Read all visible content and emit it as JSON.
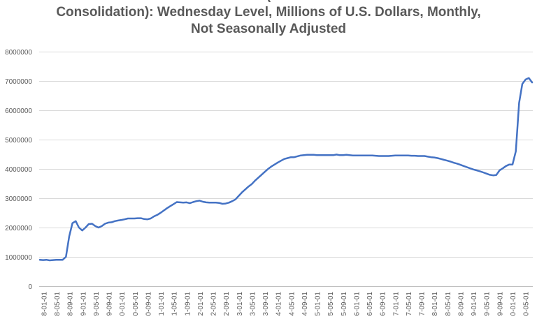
{
  "title_lines": [
    "(",
    "Consolidation): Wednesday Level, Millions of U.S. Dollars, Monthly,",
    "Not Seasonally Adjusted"
  ],
  "chart_data": {
    "type": "line",
    "title": "Consolidation): Wednesday Level, Millions of U.S. Dollars, Monthly, Not Seasonally Adjusted",
    "xlabel": "",
    "ylabel": "",
    "ylim": [
      0,
      8000000
    ],
    "yticks": [
      0,
      1000000,
      2000000,
      3000000,
      4000000,
      5000000,
      6000000,
      7000000,
      8000000
    ],
    "ytick_labels": [
      "0",
      "1000000",
      "2000000",
      "3000000",
      "4000000",
      "5000000",
      "6000000",
      "7000000",
      "8000000"
    ],
    "grid": true,
    "legend": "none",
    "line_color": "#4472c4",
    "x_tick_labels": [
      "8-01-01",
      "8-05-01",
      "8-09-01",
      "9-01-01",
      "9-05-01",
      "9-09-01",
      "0-01-01",
      "0-05-01",
      "0-09-01",
      "1-01-01",
      "1-05-01",
      "1-09-01",
      "2-01-01",
      "2-05-01",
      "2-09-01",
      "3-01-01",
      "3-05-01",
      "3-09-01",
      "4-01-01",
      "4-05-01",
      "4-09-01",
      "5-01-01",
      "5-05-01",
      "5-09-01",
      "6-01-01",
      "6-05-01",
      "6-09-01",
      "7-01-01",
      "7-05-01",
      "7-09-01",
      "8-01-01",
      "8-05-01",
      "8-09-01",
      "9-01-01",
      "9-05-01",
      "9-09-01",
      "0-01-01",
      "0-05-01"
    ],
    "series": [
      {
        "name": "Wednesday Level",
        "values": [
          900000,
          890000,
          900000,
          880000,
          890000,
          900000,
          900000,
          900000,
          1000000,
          1700000,
          2150000,
          2220000,
          2000000,
          1900000,
          2000000,
          2120000,
          2130000,
          2050000,
          2000000,
          2050000,
          2130000,
          2170000,
          2180000,
          2220000,
          2240000,
          2260000,
          2280000,
          2310000,
          2310000,
          2310000,
          2320000,
          2320000,
          2290000,
          2280000,
          2310000,
          2380000,
          2430000,
          2500000,
          2580000,
          2660000,
          2730000,
          2800000,
          2870000,
          2860000,
          2850000,
          2860000,
          2830000,
          2870000,
          2900000,
          2920000,
          2880000,
          2860000,
          2850000,
          2850000,
          2850000,
          2840000,
          2810000,
          2820000,
          2850000,
          2900000,
          2960000,
          3080000,
          3200000,
          3300000,
          3400000,
          3480000,
          3600000,
          3700000,
          3800000,
          3900000,
          4000000,
          4080000,
          4150000,
          4220000,
          4280000,
          4340000,
          4370000,
          4400000,
          4400000,
          4430000,
          4460000,
          4470000,
          4480000,
          4480000,
          4480000,
          4470000,
          4470000,
          4470000,
          4470000,
          4470000,
          4470000,
          4490000,
          4470000,
          4470000,
          4480000,
          4470000,
          4460000,
          4460000,
          4460000,
          4460000,
          4460000,
          4460000,
          4460000,
          4450000,
          4440000,
          4440000,
          4440000,
          4440000,
          4450000,
          4460000,
          4460000,
          4460000,
          4460000,
          4460000,
          4450000,
          4450000,
          4440000,
          4440000,
          4440000,
          4420000,
          4400000,
          4390000,
          4370000,
          4340000,
          4310000,
          4280000,
          4250000,
          4210000,
          4180000,
          4140000,
          4100000,
          4060000,
          4020000,
          3980000,
          3950000,
          3920000,
          3880000,
          3840000,
          3800000,
          3780000,
          3790000,
          3950000,
          4020000,
          4100000,
          4150000,
          4150000,
          4600000,
          6250000,
          6900000,
          7050000,
          7100000,
          6950000
        ]
      }
    ]
  }
}
